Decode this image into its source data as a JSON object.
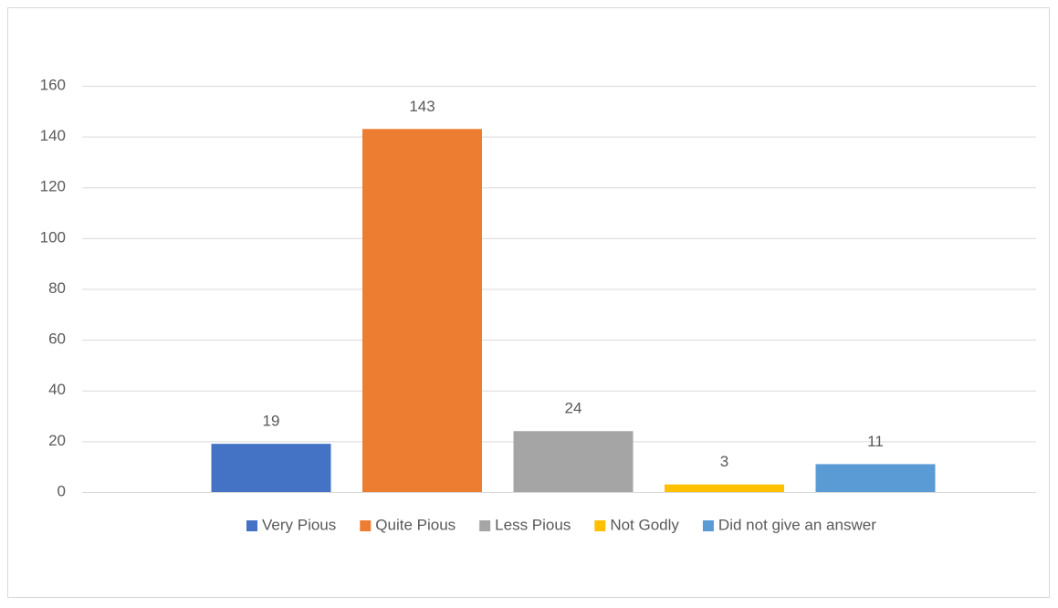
{
  "chart_data": {
    "type": "bar",
    "categories": [
      null
    ],
    "series": [
      {
        "name": "Very Pious",
        "color": "#4472c4",
        "values": [
          19
        ]
      },
      {
        "name": "Quite Pious",
        "color": "#ed7d31",
        "values": [
          143
        ]
      },
      {
        "name": "Less Pious",
        "color": "#a5a5a5",
        "values": [
          24
        ]
      },
      {
        "name": "Not Godly",
        "color": "#ffc000",
        "values": [
          3
        ]
      },
      {
        "name": "Did not give an answer",
        "color": "#5b9bd5",
        "values": [
          11
        ]
      }
    ],
    "ylim": [
      0,
      160
    ],
    "yticks": [
      0,
      20,
      40,
      60,
      80,
      100,
      120,
      140,
      160
    ],
    "grid": true,
    "legend": "bottom",
    "data_labels": true
  }
}
